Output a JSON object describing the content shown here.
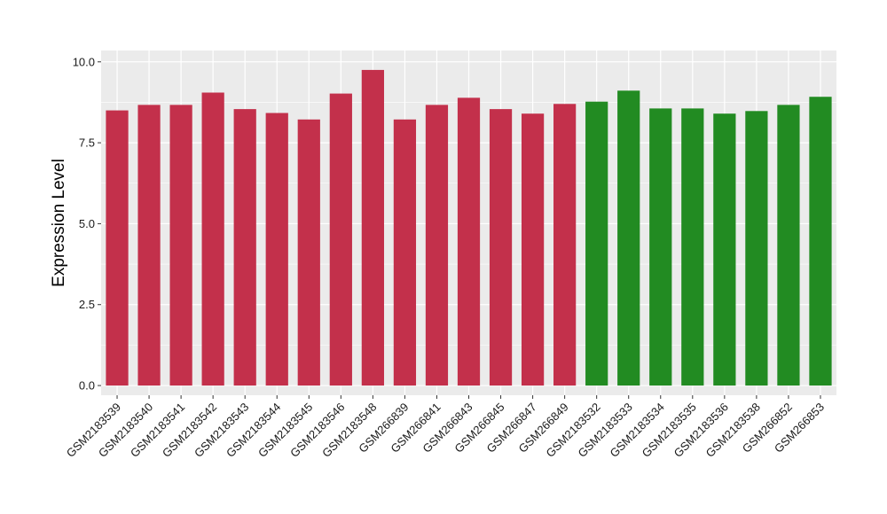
{
  "chart_data": {
    "type": "bar",
    "title": "",
    "xlabel": "",
    "ylabel": "Expression Level",
    "ylim": [
      -0.3,
      10.35
    ],
    "yticks": [
      0.0,
      2.5,
      5.0,
      7.5,
      10.0
    ],
    "ytick_labels": [
      "0.0",
      "2.5",
      "5.0",
      "7.5",
      "10.0"
    ],
    "grid": true,
    "legend": "none",
    "categories": [
      "GSM2183539",
      "GSM2183540",
      "GSM2183541",
      "GSM2183542",
      "GSM2183543",
      "GSM2183544",
      "GSM2183545",
      "GSM2183546",
      "GSM2183548",
      "GSM266839",
      "GSM266841",
      "GSM266843",
      "GSM266845",
      "GSM266847",
      "GSM266849",
      "GSM2183532",
      "GSM2183533",
      "GSM2183534",
      "GSM2183535",
      "GSM2183536",
      "GSM2183538",
      "GSM266852",
      "GSM266853"
    ],
    "values": [
      8.5,
      8.67,
      8.67,
      9.05,
      8.54,
      8.42,
      8.22,
      9.02,
      9.75,
      8.22,
      8.67,
      8.89,
      8.54,
      8.4,
      8.7,
      8.77,
      9.11,
      8.56,
      8.56,
      8.4,
      8.48,
      8.67,
      8.92
    ],
    "group_colors": [
      "#C3304B",
      "#C3304B",
      "#C3304B",
      "#C3304B",
      "#C3304B",
      "#C3304B",
      "#C3304B",
      "#C3304B",
      "#C3304B",
      "#C3304B",
      "#C3304B",
      "#C3304B",
      "#C3304B",
      "#C3304B",
      "#C3304B",
      "#228B22",
      "#228B22",
      "#228B22",
      "#228B22",
      "#228B22",
      "#228B22",
      "#228B22",
      "#228B22"
    ],
    "panel_background": "#EBEBEB",
    "grid_color": "#FFFFFF"
  }
}
